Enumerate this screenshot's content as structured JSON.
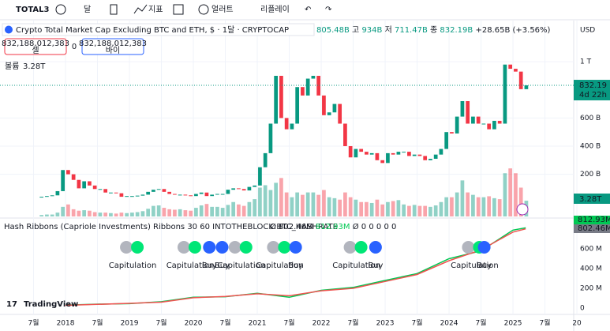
{
  "toolbar": {
    "symbol": "TOTAL3",
    "interval": "달",
    "indicators": "지표",
    "alert": "얼러트",
    "replay": "리플레이"
  },
  "legend": {
    "title": "Crypto Total Market Cap Excluding BTC and ETH, $ · 1달 · CRYPTOCAP",
    "ohlc": [
      "805.48B",
      "고",
      "934B",
      "저",
      "711.47B",
      "종",
      "832.19B",
      "+28.65B (+3.56%)"
    ],
    "sell_price": "832,188,012,383",
    "sell": "셀",
    "spread": "0",
    "buy_price": "832,188,012,383",
    "buy": "바이",
    "volume_label": "볼륨",
    "volume_value": "3.28T"
  },
  "chart_data": {
    "type": "candlestick",
    "currency": "USD",
    "x": [
      "2017-08",
      "2017-09",
      "2017-10",
      "2017-11",
      "2017-12",
      "2018-01",
      "2018-02",
      "2018-03",
      "2018-04",
      "2018-05",
      "2018-06",
      "2018-07",
      "2018-08",
      "2018-09",
      "2018-10",
      "2018-11",
      "2018-12",
      "2019-01",
      "2019-02",
      "2019-03",
      "2019-04",
      "2019-05",
      "2019-06",
      "2019-07",
      "2019-08",
      "2019-09",
      "2019-10",
      "2019-11",
      "2019-12",
      "2020-01",
      "2020-02",
      "2020-03",
      "2020-04",
      "2020-05",
      "2020-06",
      "2020-07",
      "2020-08",
      "2020-09",
      "2020-10",
      "2020-11",
      "2020-12",
      "2021-01",
      "2021-02",
      "2021-03",
      "2021-04",
      "2021-05",
      "2021-06",
      "2021-07",
      "2021-08",
      "2021-09",
      "2021-10",
      "2021-11",
      "2021-12",
      "2022-01",
      "2022-02",
      "2022-03",
      "2022-04",
      "2022-05",
      "2022-06",
      "2022-07",
      "2022-08",
      "2022-09",
      "2022-10",
      "2022-11",
      "2022-12",
      "2023-01",
      "2023-02",
      "2023-03",
      "2023-04",
      "2023-05",
      "2023-06",
      "2023-07",
      "2023-08",
      "2023-09",
      "2023-10",
      "2023-11",
      "2023-12",
      "2024-01",
      "2024-02",
      "2024-03",
      "2024-04",
      "2024-05",
      "2024-06",
      "2024-07",
      "2024-08",
      "2024-09",
      "2024-10",
      "2024-11",
      "2024-12",
      "2025-01",
      "2025-02",
      "2025-03"
    ],
    "close": [
      40,
      45,
      50,
      80,
      230,
      200,
      160,
      100,
      150,
      120,
      95,
      95,
      70,
      70,
      65,
      40,
      45,
      45,
      48,
      55,
      75,
      90,
      95,
      75,
      60,
      55,
      55,
      50,
      45,
      60,
      70,
      45,
      55,
      60,
      60,
      90,
      100,
      95,
      85,
      110,
      120,
      250,
      350,
      560,
      900,
      600,
      520,
      560,
      820,
      760,
      880,
      900,
      760,
      620,
      640,
      700,
      560,
      400,
      320,
      380,
      360,
      340,
      350,
      300,
      280,
      350,
      340,
      360,
      360,
      330,
      340,
      330,
      300,
      310,
      340,
      380,
      500,
      490,
      610,
      720,
      560,
      610,
      560,
      560,
      520,
      580,
      560,
      980,
      950,
      930,
      805,
      832.19
    ],
    "volume": [
      0.3,
      0.4,
      0.4,
      0.8,
      2,
      2.5,
      1.5,
      1.2,
      1.3,
      1.2,
      0.9,
      0.8,
      0.8,
      0.7,
      0.6,
      0.8,
      0.7,
      0.8,
      0.9,
      1.1,
      1.6,
      2.2,
      2.3,
      1.8,
      1.5,
      1.4,
      1.5,
      1.3,
      1.2,
      1.8,
      2.3,
      2.6,
      2,
      2,
      1.8,
      2.4,
      3,
      2.5,
      2.2,
      3,
      3.6,
      6,
      6.5,
      5.5,
      7,
      8,
      5,
      4,
      5,
      4.5,
      5,
      5,
      4.5,
      5.5,
      4,
      3.8,
      3.5,
      5,
      4,
      3.5,
      3,
      3,
      2.8,
      3.5,
      2.5,
      3,
      3.2,
      3.4,
      2.5,
      2.2,
      2.4,
      2.2,
      2.2,
      2,
      2.3,
      3,
      4,
      4,
      5,
      7.5,
      5,
      4.5,
      4,
      4,
      4.2,
      3.8,
      3.6,
      9,
      10,
      9,
      6,
      3.28
    ],
    "up_color": "#089981",
    "down_color": "#f23645",
    "xlim": [
      2016.975,
      2025.95
    ],
    "xticks": [
      {
        "value": 2017.5,
        "label": "7월"
      },
      2018,
      {
        "value": 2018.5,
        "label": "7월"
      },
      2019,
      {
        "value": 2019.5,
        "label": "7월"
      },
      2020,
      {
        "value": 2020.5,
        "label": "7월"
      },
      2021,
      {
        "value": 2021.5,
        "label": "7월"
      },
      2022,
      {
        "value": 2022.5,
        "label": "7월"
      },
      2023,
      {
        "value": 2023.5,
        "label": "7월"
      },
      2024,
      {
        "value": 2024.5,
        "label": "7월"
      },
      2025,
      {
        "value": 2025.5,
        "label": "7월"
      },
      {
        "value": 2026,
        "label": "20"
      }
    ],
    "ylim": [
      -100,
      1265
    ],
    "yticks": [
      {
        "value": 200,
        "label": "200 B"
      },
      {
        "value": 400,
        "label": "400 B"
      },
      {
        "value": 600,
        "label": "600 B"
      },
      {
        "value": 1000,
        "label": "1 T"
      }
    ],
    "vlim": [
      0,
      12
    ],
    "last_price": 832.19,
    "last_price_label": "832.19 B",
    "countdown": "4d 22h",
    "volume_tag": "3.28T"
  },
  "indicator": {
    "type": "line",
    "title": "Hash Ribbons (Capriole Investments) Ribbons 30 60 INTOTHEBLOCK:BTC_HASHRATE",
    "values_text": [
      "Ø",
      "802.46M",
      "812.93M",
      "Ø",
      "0",
      "0",
      "0",
      "0",
      "0"
    ],
    "ylim": [
      -64,
      880
    ],
    "yticks": [
      0,
      {
        "value": 200,
        "label": "200 M"
      },
      {
        "value": 400,
        "label": "400 M"
      },
      {
        "value": 600,
        "label": "600 M"
      }
    ],
    "series": [
      {
        "name": "30",
        "color": "#00c853",
        "x": [
          2018,
          2018.5,
          2019,
          2019.5,
          2020,
          2020.5,
          2021,
          2021.5,
          2022,
          2022.5,
          2023,
          2023.5,
          2024,
          2024.5,
          2025,
          2025.2
        ],
        "values": [
          30,
          40,
          45,
          65,
          110,
          115,
          150,
          110,
          180,
          210,
          280,
          350,
          500,
          580,
          790,
          812.93
        ]
      },
      {
        "name": "60",
        "color": "#ef5350",
        "x": [
          2018,
          2018.5,
          2019,
          2019.5,
          2020,
          2020.5,
          2021,
          2021.5,
          2022,
          2022.5,
          2023,
          2023.5,
          2024,
          2024.5,
          2025,
          2025.2
        ],
        "values": [
          28,
          38,
          48,
          60,
          105,
          118,
          145,
          125,
          175,
          200,
          270,
          340,
          480,
          590,
          770,
          802.46
        ]
      }
    ],
    "tags": [
      {
        "label": "812.93M",
        "color": "#00c853"
      },
      {
        "label": "802.46M",
        "color": "#787b86"
      }
    ],
    "signals": [
      {
        "x": 2019.05,
        "label": "Capitulation"
      },
      {
        "x": 2019.95,
        "label": "Capitulation"
      },
      {
        "x": 2020.25,
        "label": "Buy"
      },
      {
        "x": 2020.45,
        "label": "Buy"
      },
      {
        "x": 2020.75,
        "label": "Capitulation"
      },
      {
        "x": 2021.35,
        "label": "Capitulation"
      },
      {
        "x": 2021.6,
        "label": "Buy"
      },
      {
        "x": 2022.55,
        "label": "Capitulation"
      },
      {
        "x": 2022.85,
        "label": "Buy"
      },
      {
        "x": 2024.4,
        "label": "Capitulation"
      },
      {
        "x": 2024.55,
        "label": "Buy"
      }
    ]
  },
  "watermark": "TradingView"
}
